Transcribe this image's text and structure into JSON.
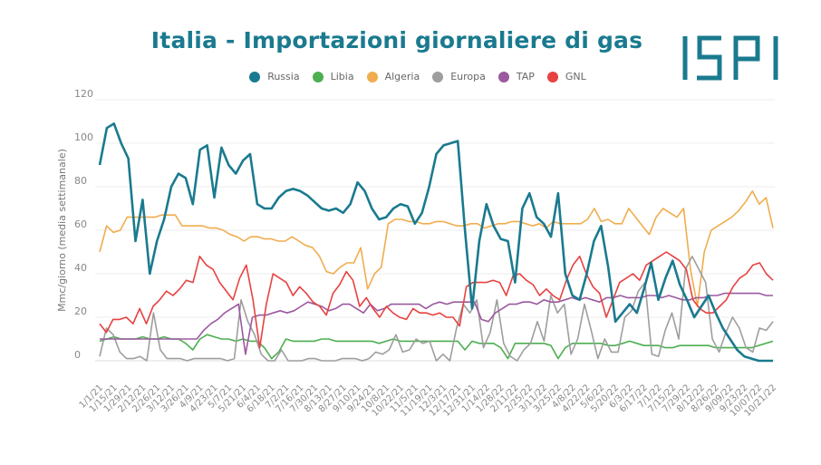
{
  "chart_data": {
    "type": "line",
    "title": "Italia - Importazioni giornaliere di gas",
    "logo": "ISPI",
    "xlabel": "",
    "ylabel": "Mmc/giorno (media settimanale)",
    "ylim": [
      0,
      120
    ],
    "yticks": [
      0,
      20,
      40,
      60,
      80,
      100,
      120
    ],
    "grid": true,
    "legend_position": "top-center",
    "x_tick_labels": [
      "1/1/21",
      "1/15/21",
      "1/29/21",
      "2/12/21",
      "2/26/21",
      "3/12/21",
      "3/26/21",
      "4/9/21",
      "4/23/21",
      "5/7/21",
      "5/21/21",
      "6/4/21",
      "6/18/21",
      "7/2/21",
      "7/16/21",
      "7/30/21",
      "8/13/21",
      "8/27/21",
      "9/10/21",
      "9/24/21",
      "10/8/21",
      "10/22/21",
      "11/5/21",
      "11/19/21",
      "12/3/21",
      "12/17/21",
      "12/31/21",
      "1/14/22",
      "1/28/22",
      "2/11/22",
      "2/25/22",
      "3/11/22",
      "3/25/22",
      "4/8/22",
      "4/22/22",
      "5/6/22",
      "5/20/22",
      "6/3/22",
      "6/17/22",
      "7/1/22",
      "7/15/22",
      "7/29/22",
      "8/12/22",
      "8/26/22",
      "9/09/22",
      "9/23/22",
      "10/07/22",
      "10/21/22"
    ],
    "x_resolution": "weekly (2 points per tick interval)",
    "series": [
      {
        "name": "Russia",
        "color": "#1a7a8f",
        "values": [
          90,
          107,
          109,
          100,
          93,
          55,
          74,
          40,
          55,
          65,
          80,
          86,
          84,
          72,
          97,
          99,
          75,
          98,
          90,
          86,
          92,
          95,
          72,
          70,
          70,
          75,
          78,
          79,
          78,
          76,
          73,
          70,
          69,
          70,
          68,
          72,
          82,
          78,
          70,
          65,
          66,
          70,
          72,
          71,
          63,
          68,
          80,
          95,
          99,
          100,
          101,
          60,
          24,
          55,
          72,
          62,
          56,
          55,
          36,
          70,
          77,
          66,
          63,
          57,
          77,
          40,
          30,
          28,
          40,
          55,
          62,
          43,
          18,
          22,
          26,
          22,
          33,
          45,
          28,
          38,
          46,
          35,
          28,
          20,
          25,
          30,
          22,
          15,
          10,
          5,
          2,
          1,
          0,
          0,
          0
        ]
      },
      {
        "name": "Libia",
        "color": "#4caf50",
        "values": [
          9,
          10,
          11,
          10,
          10,
          10,
          11,
          10,
          10,
          11,
          10,
          10,
          8,
          5,
          10,
          12,
          11,
          10,
          10,
          9,
          10,
          9,
          9,
          6,
          1,
          4,
          10,
          9,
          9,
          9,
          9,
          10,
          10,
          9,
          9,
          9,
          9,
          9,
          9,
          8,
          9,
          10,
          9,
          9,
          9,
          9,
          9,
          9,
          9,
          9,
          9,
          5,
          9,
          8,
          8,
          8,
          6,
          1,
          8,
          8,
          8,
          8,
          8,
          7,
          1,
          6,
          8,
          8,
          8,
          8,
          8,
          7,
          7,
          8,
          9,
          8,
          7,
          7,
          7,
          6,
          6,
          7,
          7,
          7,
          7,
          7,
          6,
          6,
          6,
          6,
          6,
          6,
          7,
          8,
          9
        ]
      },
      {
        "name": "Algeria",
        "color": "#f0ad4e",
        "values": [
          50,
          62,
          59,
          60,
          66,
          66,
          66,
          66,
          66,
          67,
          67,
          67,
          62,
          62,
          62,
          62,
          61,
          61,
          60,
          58,
          57,
          55,
          57,
          57,
          56,
          56,
          55,
          55,
          57,
          55,
          53,
          52,
          48,
          41,
          40,
          43,
          45,
          45,
          52,
          33,
          40,
          43,
          63,
          65,
          65,
          64,
          64,
          63,
          63,
          64,
          64,
          63,
          62,
          62,
          63,
          63,
          61,
          62,
          63,
          63,
          64,
          64,
          63,
          62,
          63,
          61,
          64,
          63,
          63,
          63,
          63,
          65,
          70,
          64,
          65,
          63,
          63,
          70,
          66,
          62,
          58,
          66,
          70,
          68,
          66,
          70,
          42,
          25,
          50,
          60,
          62,
          64,
          66,
          69,
          73,
          78,
          72,
          75,
          61
        ]
      },
      {
        "name": "Europa",
        "color": "#9e9e9e",
        "values": [
          2,
          15,
          12,
          4,
          1,
          1,
          2,
          0,
          22,
          5,
          1,
          1,
          1,
          0,
          1,
          1,
          1,
          1,
          1,
          0,
          1,
          28,
          18,
          12,
          3,
          0,
          0,
          5,
          0,
          0,
          0,
          1,
          1,
          0,
          0,
          0,
          1,
          1,
          1,
          0,
          1,
          4,
          3,
          5,
          12,
          4,
          5,
          10,
          8,
          9,
          0,
          3,
          0,
          15,
          26,
          22,
          28,
          6,
          13,
          28,
          8,
          2,
          0,
          5,
          8,
          18,
          9,
          30,
          22,
          26,
          3,
          10,
          26,
          14,
          1,
          10,
          4,
          4,
          20,
          23,
          32,
          36,
          3,
          2,
          14,
          22,
          10,
          42,
          48,
          42,
          36,
          10,
          4,
          13,
          20,
          15,
          6,
          4,
          15,
          14,
          18
        ]
      },
      {
        "name": "TAP",
        "color": "#9b59a0",
        "values": [
          10,
          10,
          10,
          10,
          10,
          10,
          10,
          10,
          10,
          10,
          10,
          10,
          10,
          10,
          10,
          14,
          17,
          19,
          22,
          24,
          26,
          3,
          20,
          21,
          21,
          22,
          23,
          22,
          23,
          25,
          27,
          26,
          25,
          23,
          24,
          26,
          26,
          24,
          22,
          26,
          23,
          24,
          26,
          26,
          26,
          26,
          26,
          24,
          26,
          27,
          26,
          27,
          27,
          27,
          27,
          19,
          18,
          22,
          24,
          26,
          26,
          27,
          27,
          26,
          28,
          27,
          27,
          28,
          29,
          28,
          29,
          28,
          27,
          29,
          29,
          30,
          29,
          29,
          29,
          30,
          30,
          29,
          30,
          29,
          28,
          28,
          29,
          29,
          30,
          30,
          31,
          31,
          31,
          31,
          31,
          31,
          30,
          30
        ]
      },
      {
        "name": "GNL",
        "color": "#e84141",
        "values": [
          17,
          13,
          19,
          19,
          20,
          17,
          24,
          17,
          25,
          28,
          32,
          30,
          33,
          37,
          36,
          48,
          44,
          42,
          36,
          32,
          28,
          38,
          44,
          28,
          6,
          26,
          40,
          38,
          36,
          30,
          34,
          31,
          27,
          25,
          21,
          31,
          35,
          41,
          37,
          25,
          29,
          24,
          20,
          25,
          22,
          20,
          19,
          24,
          22,
          22,
          21,
          22,
          20,
          20,
          16,
          34,
          36,
          36,
          36,
          37,
          36,
          30,
          39,
          40,
          37,
          35,
          30,
          33,
          30,
          28,
          37,
          44,
          48,
          40,
          34,
          31,
          20,
          28,
          36,
          38,
          40,
          37,
          44,
          46,
          48,
          50,
          48,
          46,
          42,
          28,
          24,
          22,
          22,
          25,
          28,
          34,
          38,
          40,
          44,
          45,
          40,
          37
        ]
      }
    ]
  }
}
